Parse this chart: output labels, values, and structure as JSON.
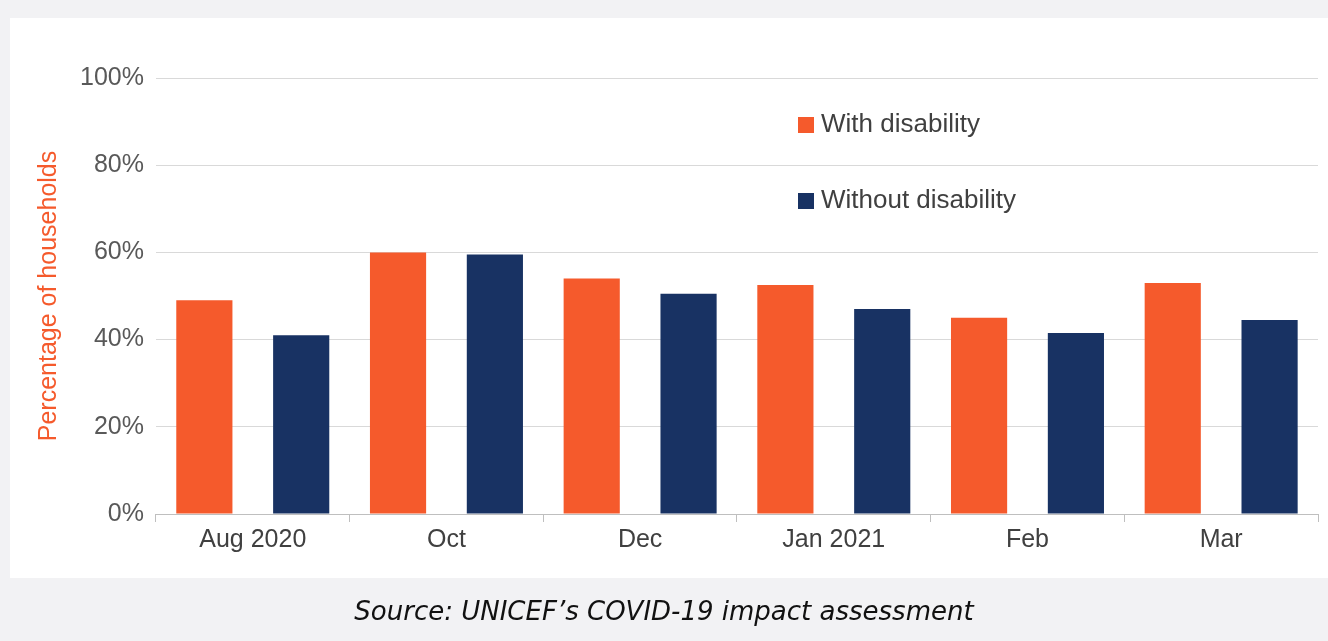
{
  "chart_data": {
    "type": "bar",
    "ylabel": "Percentage of households",
    "categories": [
      "Aug 2020",
      "Oct",
      "Dec",
      "Jan 2021",
      "Feb",
      "Mar"
    ],
    "series": [
      {
        "name": "With disability",
        "color": "#f55a2c",
        "values": [
          49,
          60,
          54,
          52.5,
          45,
          53
        ]
      },
      {
        "name": "Without disability",
        "color": "#183263",
        "values": [
          41,
          59.5,
          50.5,
          47,
          41.5,
          44.5
        ]
      }
    ],
    "ylim": [
      0,
      100
    ],
    "yticks": [
      {
        "value": 0,
        "label": "0%"
      },
      {
        "value": 20,
        "label": "20%"
      },
      {
        "value": 40,
        "label": "40%"
      },
      {
        "value": 60,
        "label": "60%"
      },
      {
        "value": 80,
        "label": "80%"
      },
      {
        "value": 100,
        "label": "100%"
      }
    ],
    "grid": "y",
    "legend": "top right",
    "annotations": [
      "Source: UNICEF’s COVID-19 impact assessment"
    ]
  }
}
